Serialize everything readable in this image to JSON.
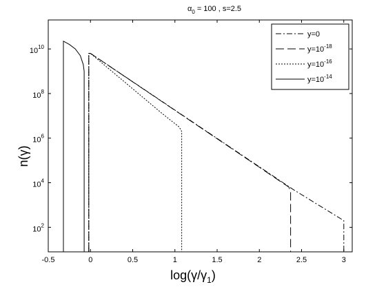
{
  "chart_data": {
    "type": "line",
    "title": "α₀ = 100 , s=2.5",
    "title_parts": {
      "alpha": "α",
      "alpha_sub": "0",
      "rest": " = 100 , s=2.5"
    },
    "xlabel": "log(γ/γ1)",
    "xlabel_parts": {
      "main": "log(γ/γ",
      "sub": "1",
      "close": ")"
    },
    "ylabel": "n(γ)",
    "xlim": [
      -0.5,
      3.1
    ],
    "ylim_log10": [
      0.9,
      11.3
    ],
    "y_scale": "log",
    "grid": false,
    "legend_position": "top-right",
    "x_ticks": [
      {
        "value": -0.5,
        "label": "-0.5"
      },
      {
        "value": 0,
        "label": "0"
      },
      {
        "value": 0.5,
        "label": "0.5"
      },
      {
        "value": 1,
        "label": "1"
      },
      {
        "value": 1.5,
        "label": "1.5"
      },
      {
        "value": 2,
        "label": "2"
      },
      {
        "value": 2.5,
        "label": "2.5"
      },
      {
        "value": 3,
        "label": "3"
      }
    ],
    "y_ticks": [
      {
        "exp": 2,
        "base": "10",
        "sup": "2"
      },
      {
        "exp": 4,
        "base": "10",
        "sup": "4"
      },
      {
        "exp": 6,
        "base": "10",
        "sup": "6"
      },
      {
        "exp": 8,
        "base": "10",
        "sup": "8"
      },
      {
        "exp": 10,
        "base": "10",
        "sup": "10"
      }
    ],
    "series": [
      {
        "name": "y=0",
        "legend": {
          "base": "y=0",
          "sup": ""
        },
        "dash": "dashdot",
        "points_log10": [
          [
            -0.02,
            0
          ],
          [
            -0.02,
            9.8
          ],
          [
            0,
            9.8
          ],
          [
            2.4,
            3.7
          ],
          [
            3.0,
            2.3
          ],
          [
            3.0,
            0
          ]
        ]
      },
      {
        "name": "y=10^-18",
        "legend": {
          "base": "y=10",
          "sup": "-18"
        },
        "dash": "longdash",
        "points_log10": [
          [
            -0.02,
            0
          ],
          [
            -0.02,
            9.8
          ],
          [
            0,
            9.8
          ],
          [
            2.35,
            3.8
          ],
          [
            2.37,
            3.6
          ],
          [
            2.37,
            0
          ]
        ]
      },
      {
        "name": "y=10^-16",
        "legend": {
          "base": "y=10",
          "sup": "-16"
        },
        "dash": "dotted",
        "points_log10": [
          [
            -0.02,
            0
          ],
          [
            -0.02,
            9.8
          ],
          [
            0,
            9.8
          ],
          [
            0.85,
            7.1
          ],
          [
            0.95,
            6.8
          ],
          [
            1.05,
            6.5
          ],
          [
            1.08,
            6.3
          ],
          [
            1.08,
            0
          ]
        ]
      },
      {
        "name": "y=10^-14",
        "legend": {
          "base": "y=10",
          "sup": "-14"
        },
        "dash": "solid",
        "points_log10": [
          [
            -0.32,
            0
          ],
          [
            -0.32,
            10.35
          ],
          [
            -0.25,
            10.2
          ],
          [
            -0.18,
            10.0
          ],
          [
            -0.12,
            9.7
          ],
          [
            -0.085,
            9.3
          ],
          [
            -0.075,
            9.0
          ],
          [
            -0.075,
            0
          ]
        ]
      }
    ]
  }
}
